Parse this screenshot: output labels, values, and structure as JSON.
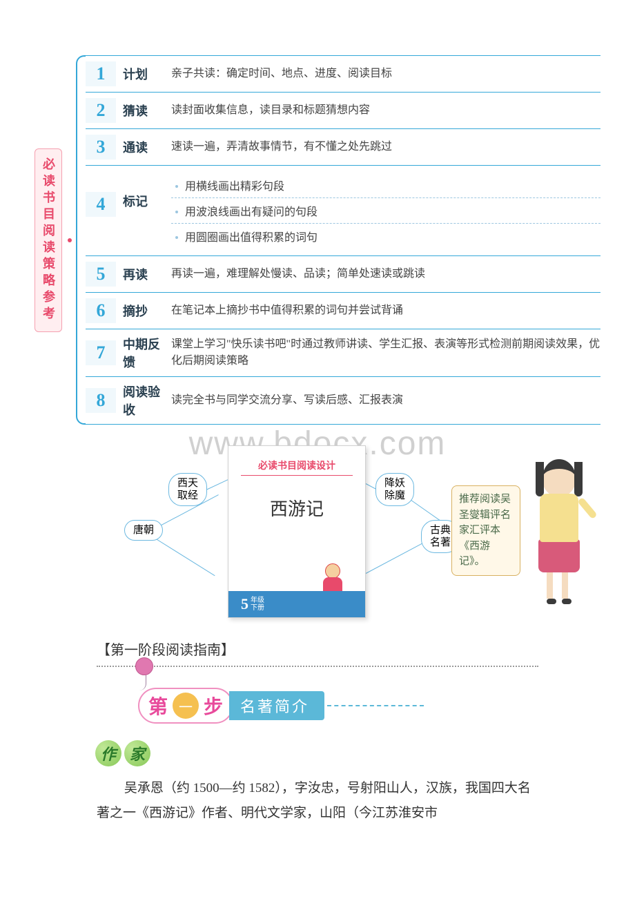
{
  "watermark": "www.bdocx.com",
  "sidebar_title": "必读书目阅读策略参考",
  "steps": [
    {
      "num": "1",
      "name": "计划",
      "desc": "亲子共读：确定时间、地点、进度、阅读目标"
    },
    {
      "num": "2",
      "name": "猜读",
      "desc": "读封面收集信息，读目录和标题猜想内容"
    },
    {
      "num": "3",
      "name": "通读",
      "desc": "速读一遍，弄清故事情节，有不懂之处先跳过"
    },
    {
      "num": "4",
      "name": "标记",
      "subs": [
        "用横线画出精彩句段",
        "用波浪线画出有疑问的句段",
        "用圆圈画出值得积累的词句"
      ]
    },
    {
      "num": "5",
      "name": "再读",
      "desc": "再读一遍，难理解处慢读、品读；简单处速读或跳读"
    },
    {
      "num": "6",
      "name": "摘抄",
      "desc": "在笔记本上摘抄书中值得积累的词句并尝试背诵"
    },
    {
      "num": "7",
      "name": "中期反馈",
      "desc": "课堂上学习\"快乐读书吧\"时通过教师讲读、学生汇报、表演等形式检测前期阅读效果，优化后期阅读策略"
    },
    {
      "num": "8",
      "name": "阅读验收",
      "desc": "读完全书与同学交流分享、写读后感、汇报表演"
    }
  ],
  "book": {
    "header": "必读书目阅读设计",
    "title": "西游记",
    "grade_num": "5",
    "grade_text_1": "年级",
    "grade_text_2": "下册"
  },
  "bubbles": {
    "b1": "西天\n取经",
    "b2": "唐朝",
    "b3": "降妖\n除魔",
    "b4": "古典\n名著"
  },
  "speech": "推荐阅读吴圣燮辑评名家汇评本《西游记》。",
  "stage_heading": "【第一阶段阅读指南】",
  "step_banner": {
    "c1": "第",
    "c2": "一",
    "c3": "步",
    "subtitle": "名著简介"
  },
  "author_label": {
    "c1": "作",
    "c2": "家"
  },
  "body_p1": "吴承恩（约 1500—约 1582），字汝忠，号射阳山人，汉族，我国四大名著之一《西游记》作者、明代文学家，山阳（今江苏淮安市",
  "colors": {
    "accent_blue": "#33a7d8",
    "accent_pink": "#e84a6b",
    "sidebar_bg": "#ffeef0",
    "bubble_border": "#6bb8e0",
    "speech_bg": "#fff8e8",
    "step_banner_pink": "#f090c0",
    "step_banner_yellow": "#f5c050",
    "step_banner_blue": "#5bb8d8",
    "author_green": "#88c858"
  }
}
